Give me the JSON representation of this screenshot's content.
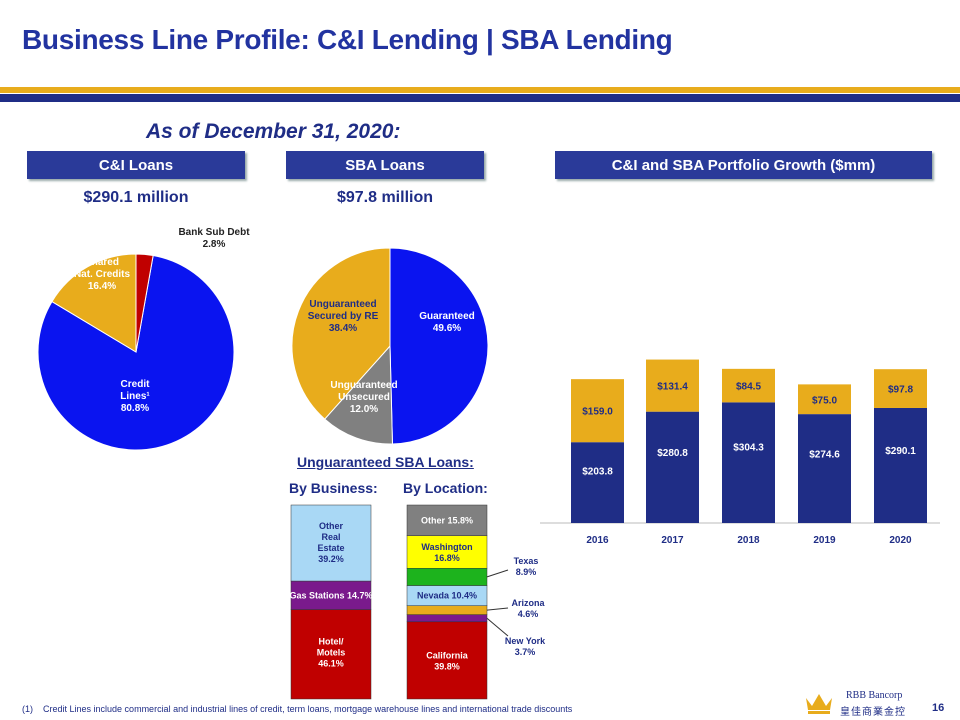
{
  "header": {
    "title": "Business Line Profile:  C&I Lending | SBA Lending"
  },
  "as_of": "As of December 31, 2020:",
  "panels": {
    "ci": {
      "header": "C&I Loans",
      "amount": "$290.1 million"
    },
    "sba": {
      "header": "SBA Loans",
      "amount": "$97.8 million"
    },
    "growth": {
      "header": "C&I and SBA Portfolio Growth ($mm)"
    }
  },
  "unguaranteed": {
    "title": "Unguaranteed SBA Loans:",
    "by_business": "By Business:",
    "by_location": "By Location:"
  },
  "colors": {
    "navy": "#1f2d86",
    "gold": "#e8ac1c",
    "blue": "#0a14f0",
    "gray": "#808080",
    "red": "#c00000",
    "purple": "#7a1a8c",
    "lightblue": "#a9d8f5",
    "yellow": "#ffff00",
    "green": "#1db31d"
  },
  "chart_data": [
    {
      "type": "pie",
      "title": "C&I Loans",
      "slices": [
        {
          "label": "Credit Lines¹",
          "value": 80.8,
          "display": "80.8%"
        },
        {
          "label": "Shared Nat. Credits",
          "value": 16.4,
          "display": "16.4%"
        },
        {
          "label": "Bank Sub Debt",
          "value": 2.8,
          "display": "2.8%"
        }
      ]
    },
    {
      "type": "pie",
      "title": "SBA Loans",
      "slices": [
        {
          "label": "Guaranteed",
          "value": 49.6,
          "display": "49.6%"
        },
        {
          "label": "Unguaranteed Unsecured",
          "value": 12.0,
          "display": "12.0%"
        },
        {
          "label": "Unguaranteed Secured by RE",
          "value": 38.4,
          "display": "38.4%"
        }
      ]
    },
    {
      "type": "bar",
      "stacked": true,
      "title": "C&I and SBA Portfolio Growth ($mm)",
      "categories": [
        "2016",
        "2017",
        "2018",
        "2019",
        "2020"
      ],
      "series": [
        {
          "name": "C&I",
          "values": [
            203.8,
            280.8,
            304.3,
            274.6,
            290.1
          ],
          "labels": [
            "$203.8",
            "$280.8",
            "$304.3",
            "$274.6",
            "$290.1"
          ]
        },
        {
          "name": "SBA",
          "values": [
            159.0,
            131.4,
            84.5,
            75.0,
            97.8
          ],
          "labels": [
            "$159.0",
            "$131.4",
            "$84.5",
            "$75.0",
            "$97.8"
          ]
        }
      ],
      "ylim": [
        0,
        420
      ]
    },
    {
      "type": "bar",
      "stacked": true,
      "title": "Unguaranteed SBA Loans: By Business",
      "segments": [
        {
          "label": "Hotel/ Motels",
          "value": 46.1,
          "display": "46.1%"
        },
        {
          "label": "Gas Stations",
          "value": 14.7,
          "display": "14.7%"
        },
        {
          "label": "Other Real Estate",
          "value": 39.2,
          "display": "39.2%"
        }
      ]
    },
    {
      "type": "bar",
      "stacked": true,
      "title": "Unguaranteed SBA Loans: By Location",
      "segments": [
        {
          "label": "California",
          "value": 39.8,
          "display": "39.8%"
        },
        {
          "label": "New York",
          "value": 3.7,
          "display": "3.7%"
        },
        {
          "label": "Arizona",
          "value": 4.6,
          "display": "4.6%"
        },
        {
          "label": "Nevada",
          "value": 10.4,
          "display": "10.4%"
        },
        {
          "label": "Texas",
          "value": 8.9,
          "display": "8.9%"
        },
        {
          "label": "Washington",
          "value": 16.8,
          "display": "16.8%"
        },
        {
          "label": "Other",
          "value": 15.8,
          "display": "15.8%"
        }
      ]
    }
  ],
  "footnote": {
    "marker": "(1)",
    "text": "Credit Lines include commercial and industrial lines of credit, term loans, mortgage warehouse lines and international trade discounts"
  },
  "page_number": "16",
  "logo": {
    "name_en": "RBB Bancorp",
    "name_cn": "皇佳商業金控"
  }
}
